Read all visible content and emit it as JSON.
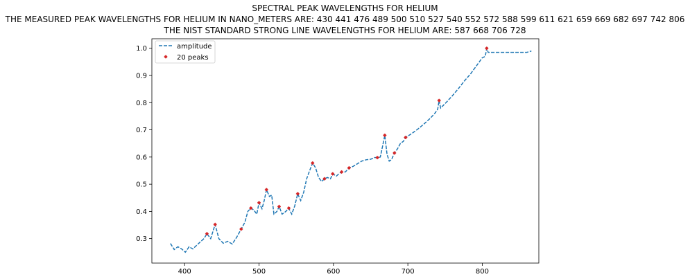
{
  "chart_data": {
    "type": "line",
    "title": "SPECTRAL PEAK WAVELENGTHS FOR HELIUM",
    "subtitle_1": "THE MEASURED PEAK WAVELENGTHS FOR HELIUM IN NANO_METERS ARE: 430 441 476 489 500 510 527 540 552 572 588 599 611 621 659 669 682 697 742 806",
    "subtitle_2": "THE NIST STANDARD STRONG LINE WAVELENGTHS FOR HELIUM ARE: 587 668 706 728",
    "xlabel": "",
    "ylabel": "",
    "xlim": [
      356,
      876
    ],
    "ylim": [
      0.21,
      1.035
    ],
    "xticks": [
      400,
      500,
      600,
      700,
      800
    ],
    "yticks": [
      0.3,
      0.4,
      0.5,
      0.6,
      0.7,
      0.8,
      0.9,
      1.0
    ],
    "xtick_labels": [
      "400",
      "500",
      "600",
      "700",
      "800"
    ],
    "ytick_labels": [
      "0.3",
      "0.4",
      "0.5",
      "0.6",
      "0.7",
      "0.8",
      "0.9",
      "1.0"
    ],
    "legend_position": "top-left",
    "grid": false,
    "series": [
      {
        "name": "amplitude",
        "style": "dashed",
        "color": "#1f77b4",
        "x": [
          381,
          386,
          391,
          396,
          401,
          406,
          411,
          416,
          421,
          426,
          430,
          435,
          441,
          446,
          452,
          458,
          464,
          470,
          476,
          481,
          485,
          489,
          493,
          497,
          500,
          504,
          507,
          510,
          514,
          517,
          520,
          524,
          527,
          531,
          536,
          540,
          544,
          548,
          552,
          556,
          560,
          564,
          568,
          572,
          576,
          580,
          584,
          588,
          592,
          596,
          599,
          604,
          608,
          611,
          616,
          621,
          626,
          632,
          638,
          644,
          650,
          655,
          659,
          663,
          666,
          669,
          672,
          675,
          678,
          682,
          686,
          690,
          694,
          697,
          705,
          713,
          721,
          729,
          736,
          740,
          742,
          744,
          752,
          760,
          768,
          776,
          784,
          792,
          800,
          804,
          806,
          808,
          815,
          830,
          845,
          860,
          866
        ],
        "y": [
          0.282,
          0.26,
          0.27,
          0.262,
          0.25,
          0.27,
          0.262,
          0.275,
          0.288,
          0.3,
          0.318,
          0.3,
          0.352,
          0.3,
          0.283,
          0.29,
          0.28,
          0.305,
          0.335,
          0.36,
          0.4,
          0.412,
          0.405,
          0.39,
          0.432,
          0.41,
          0.44,
          0.48,
          0.455,
          0.46,
          0.39,
          0.4,
          0.418,
          0.39,
          0.4,
          0.412,
          0.39,
          0.42,
          0.465,
          0.44,
          0.47,
          0.52,
          0.55,
          0.578,
          0.56,
          0.525,
          0.51,
          0.52,
          0.525,
          0.52,
          0.538,
          0.53,
          0.54,
          0.545,
          0.545,
          0.56,
          0.565,
          0.575,
          0.585,
          0.59,
          0.592,
          0.598,
          0.598,
          0.6,
          0.64,
          0.68,
          0.61,
          0.585,
          0.59,
          0.615,
          0.63,
          0.65,
          0.658,
          0.672,
          0.686,
          0.702,
          0.72,
          0.74,
          0.76,
          0.775,
          0.808,
          0.78,
          0.802,
          0.826,
          0.852,
          0.88,
          0.905,
          0.935,
          0.965,
          0.97,
          1.0,
          0.985,
          0.985,
          0.985,
          0.985,
          0.985,
          0.99
        ]
      },
      {
        "name": "20 peaks",
        "style": "markers",
        "color": "#d62728",
        "x": [
          430,
          441,
          476,
          489,
          500,
          510,
          527,
          540,
          552,
          572,
          588,
          599,
          611,
          621,
          659,
          669,
          682,
          697,
          742,
          806
        ],
        "y": [
          0.318,
          0.352,
          0.335,
          0.412,
          0.432,
          0.48,
          0.418,
          0.412,
          0.465,
          0.578,
          0.52,
          0.538,
          0.545,
          0.56,
          0.598,
          0.68,
          0.615,
          0.672,
          0.808,
          1.0
        ]
      }
    ]
  }
}
